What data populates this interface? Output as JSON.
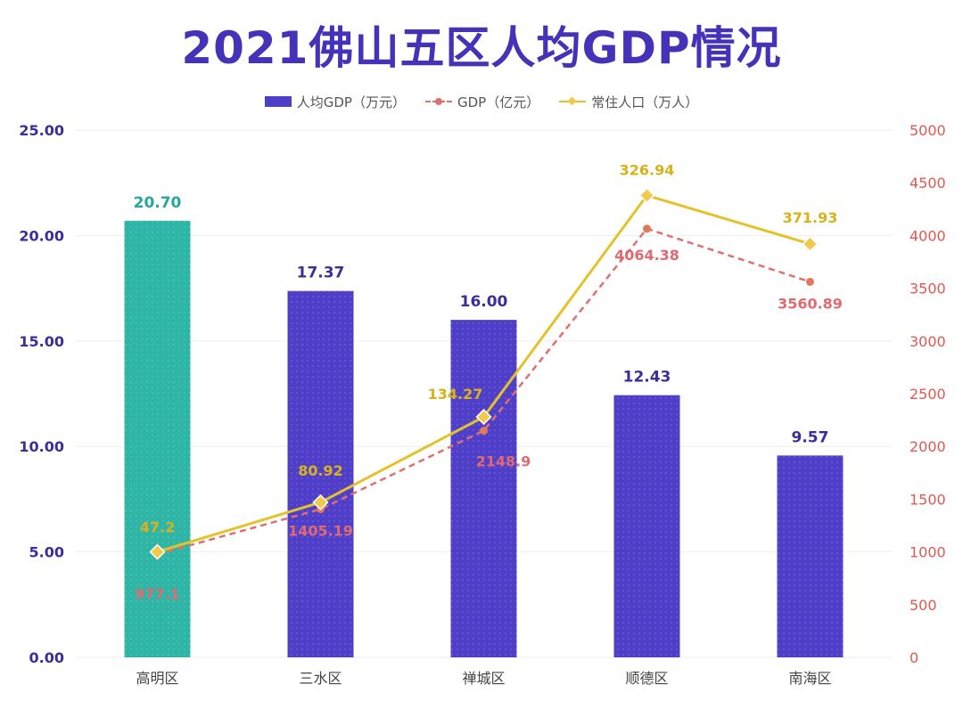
{
  "title": "2021佛山五区人均GDP情况",
  "legend": {
    "bar_label": "人均GDP（万元）",
    "gdp_label": "GDP（亿元）",
    "pop_label": "常住人口（万人）"
  },
  "colors": {
    "title": "#4433b8",
    "bar_default": "#4f3ec8",
    "bar_highlight": "#2fb5a5",
    "gdp_line": "#e07070",
    "pop_line": "#e3c22a",
    "pop_marker": "#f2c94c",
    "left_axis": "#3a2f9a",
    "right_axis": "#e0584f",
    "grid": "#eeeeee"
  },
  "chart_data": {
    "type": "bar",
    "title": "2021佛山五区人均GDP情况",
    "categories": [
      "高明区",
      "三水区",
      "禅城区",
      "顺德区",
      "南海区"
    ],
    "ylim": [
      0,
      25
    ],
    "y2lim": [
      0,
      5000
    ],
    "yticks": [
      "0.00",
      "5.00",
      "10.00",
      "15.00",
      "20.00",
      "25.00"
    ],
    "y2ticks": [
      "0",
      "500",
      "1000",
      "1500",
      "2000",
      "2500",
      "3000",
      "3500",
      "4000",
      "4500",
      "5000"
    ],
    "grid": true,
    "legend_position": "top",
    "series": [
      {
        "name": "人均GDP（万元）",
        "type": "bar",
        "axis": "left",
        "values": [
          20.7,
          17.37,
          16.0,
          12.43,
          9.57
        ],
        "labels": [
          "20.70",
          "17.37",
          "16.00",
          "12.43",
          "9.57"
        ],
        "highlight_index": 0
      },
      {
        "name": "GDP（亿元）",
        "type": "line",
        "style": "dashed",
        "axis": "right",
        "values": [
          977.1,
          1405.19,
          2148.9,
          4064.38,
          3560.89
        ],
        "labels": [
          "977.1",
          "1405.19",
          "2148.9",
          "4064.38",
          "3560.89"
        ]
      },
      {
        "name": "常住人口（万人）",
        "type": "line",
        "style": "solid",
        "marker": "diamond",
        "axis": "right",
        "plot_values": [
          1000,
          1470,
          2280,
          4380,
          3920
        ],
        "values": [
          47.2,
          80.92,
          134.27,
          326.94,
          371.93
        ],
        "labels": [
          "47.2",
          "80.92",
          "134.27",
          "326.94",
          "371.93"
        ]
      }
    ]
  }
}
